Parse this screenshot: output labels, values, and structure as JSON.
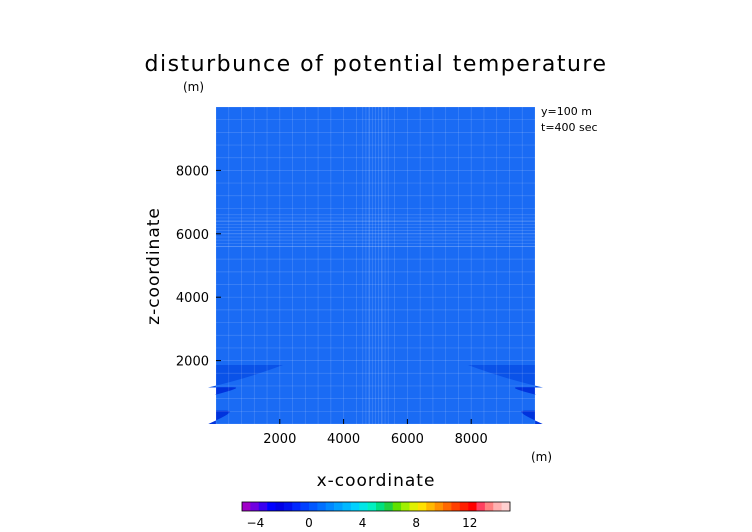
{
  "chart_data": {
    "type": "heatmap",
    "title": "disturbunce of potential temperature",
    "title_unit": "(m)",
    "xlabel": "x-coordinate",
    "ylabel": "z-coordinate",
    "x_unit": "(m)",
    "xlim": [
      0,
      10000
    ],
    "ylim": [
      0,
      10000
    ],
    "x_ticks": [
      2000,
      4000,
      6000,
      8000
    ],
    "y_ticks": [
      2000,
      4000,
      6000,
      8000
    ],
    "x_tick_labels": [
      "2000",
      "4000",
      "6000",
      "8000"
    ],
    "y_tick_labels": [
      "2000",
      "4000",
      "6000",
      "8000"
    ],
    "annotations": [
      "y=100 m",
      "t=400 sec"
    ],
    "field": {
      "background_value": 0,
      "regions": [
        {
          "side": "left",
          "value": -1,
          "z_bottom": 1150,
          "z_top": 1860,
          "x_extent": 2100
        },
        {
          "side": "left",
          "value": -2,
          "z_bottom": 920,
          "z_top": 1160,
          "x_extent": 900
        },
        {
          "side": "left",
          "value": -2,
          "z_bottom": 0,
          "z_top": 420,
          "x_extent": 700
        },
        {
          "side": "right",
          "value": -1,
          "z_bottom": 1150,
          "z_top": 1860,
          "x_extent": 2100
        },
        {
          "side": "right",
          "value": -2,
          "z_bottom": 920,
          "z_top": 1160,
          "x_extent": 900
        },
        {
          "side": "right",
          "value": -2,
          "z_bottom": 0,
          "z_top": 420,
          "x_extent": 700
        }
      ]
    },
    "colorbar": {
      "range": [
        -5,
        15
      ],
      "tick_values": [
        -4,
        0,
        4,
        8,
        12
      ],
      "tick_labels": [
        "−4",
        "0",
        "4",
        "8",
        "12"
      ],
      "colors": [
        "#a000c8",
        "#7000e0",
        "#3a00f0",
        "#0000ff",
        "#0000e6",
        "#0010f0",
        "#0028ff",
        "#0040ff",
        "#0058ff",
        "#0070ff",
        "#0088ff",
        "#00a0ff",
        "#00b8ff",
        "#00d0ff",
        "#00e6e6",
        "#00f0c0",
        "#00e080",
        "#20d040",
        "#60e000",
        "#a0f000",
        "#e0f000",
        "#ffe000",
        "#ffb800",
        "#ff9000",
        "#ff6800",
        "#ff4000",
        "#ff2000",
        "#ff0000",
        "#ff4060",
        "#ff8080",
        "#ffb0b0",
        "#ffd0d0"
      ]
    },
    "colors": {
      "background": "#1a6bf4",
      "level_minus1": "#0a52e8",
      "level_minus2": "#0033dd",
      "grid": "#ffffff"
    }
  }
}
